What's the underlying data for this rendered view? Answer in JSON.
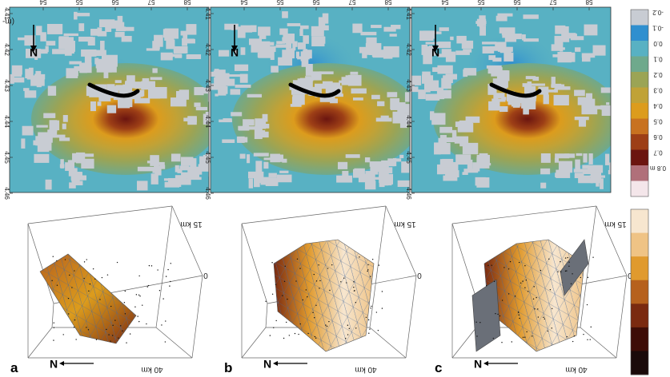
{
  "figure": {
    "top_panels": [
      {
        "id": "map-a",
        "lon_ticks": [
          "54",
          "55",
          "56",
          "57",
          "58"
        ],
        "lat_ticks": [
          "4.41",
          "4.42",
          "4.43",
          "4.44",
          "4.45",
          "4.46"
        ],
        "north_label": "N"
      },
      {
        "id": "map-b",
        "lon_ticks": [
          "54",
          "55",
          "56",
          "57",
          "58"
        ],
        "lat_ticks": [
          "4.41",
          "4.42",
          "4.43",
          "4.44",
          "4.45",
          "4.46"
        ],
        "north_label": "N"
      },
      {
        "id": "map-c",
        "lon_ticks": [
          "54",
          "55",
          "56",
          "57",
          "58"
        ],
        "lat_ticks": [
          "4.41",
          "4.42",
          "4.43",
          "4.44",
          "4.45",
          "4.46"
        ],
        "north_label": "N"
      }
    ],
    "top_axis_fragment": "(m- u",
    "colorbar_top": {
      "labels": [
        "-0.2",
        "-0.1",
        "0.0",
        "0.1",
        "0.2",
        "0.3",
        "0.4",
        "0.5",
        "0.6",
        "0.7",
        "0.8 m"
      ],
      "colors": [
        "#c8ccd3",
        "#2f8fcf",
        "#58b1c3",
        "#6fa98c",
        "#9ba455",
        "#c0a237",
        "#dc9c1d",
        "#c87220",
        "#9d3f16",
        "#6b1510",
        "#b0707a",
        "#f4e6ea"
      ]
    },
    "bottom_panels": [
      {
        "letter": "a",
        "depth_label": "15 km",
        "zero_label": "0",
        "length_label": "40 km",
        "north_label": "N"
      },
      {
        "letter": "b",
        "depth_label": "15 km",
        "zero_label": "0",
        "length_label": "40 km",
        "north_label": "N"
      },
      {
        "letter": "c",
        "depth_label": "15 km",
        "zero_label": "0",
        "length_label": "40 km",
        "north_label": "N"
      }
    ],
    "colorbar_bottom": {
      "colors": [
        "#f7e6cf",
        "#efc385",
        "#e09a2e",
        "#b6611d",
        "#7a2a10",
        "#3d0d07",
        "#1a0a0a"
      ]
    },
    "icons": [
      "north-arrow-icon"
    ]
  }
}
